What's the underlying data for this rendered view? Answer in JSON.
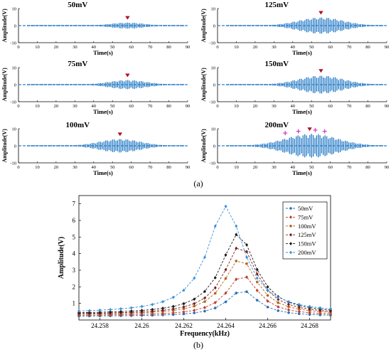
{
  "caption_a": "(a)",
  "caption_b": "(b)",
  "colors": {
    "signal": "#1f77c4",
    "dashed": "#2f7fc8",
    "peak_marker": "#b0101a",
    "plus_marker": "#d040c0"
  },
  "chart_data": [
    {
      "type": "line",
      "title": "50mV",
      "xlabel": "Time(s)",
      "ylabel": "Amplitude(V)",
      "xlim": [
        0,
        90
      ],
      "ylim": [
        -10,
        10
      ],
      "xticks": [
        "0",
        "10",
        "20",
        "30",
        "40",
        "50",
        "60",
        "70",
        "80",
        "90"
      ],
      "yticks": [
        "10",
        "0",
        "-10"
      ],
      "burst": {
        "center": 58,
        "amplitude": 1.8,
        "spread": 9
      },
      "peak_marker_time": 58,
      "plus_marker_times": []
    },
    {
      "type": "line",
      "title": "125mV",
      "xlabel": "Time(s)",
      "ylabel": "Amplitude(V)",
      "xlim": [
        0,
        90
      ],
      "ylim": [
        -10,
        10
      ],
      "xticks": [
        "0",
        "10",
        "20",
        "30",
        "40",
        "50",
        "60",
        "70",
        "80",
        "90"
      ],
      "yticks": [
        "10",
        "0",
        "-10"
      ],
      "burst": {
        "center": 55,
        "amplitude": 4.8,
        "spread": 12
      },
      "peak_marker_time": 55,
      "plus_marker_times": []
    },
    {
      "type": "line",
      "title": "75mV",
      "xlabel": "Time(s)",
      "ylabel": "Amplitude(V)",
      "xlim": [
        0,
        90
      ],
      "ylim": [
        -10,
        10
      ],
      "xticks": [
        "0",
        "10",
        "20",
        "30",
        "40",
        "50",
        "60",
        "70",
        "80",
        "90"
      ],
      "yticks": [
        "10",
        "0",
        "-10"
      ],
      "burst": {
        "center": 58,
        "amplitude": 2.7,
        "spread": 10
      },
      "peak_marker_time": 58,
      "plus_marker_times": []
    },
    {
      "type": "line",
      "title": "150mV",
      "xlabel": "Time(s)",
      "ylabel": "Amplitude(V)",
      "xlim": [
        0,
        90
      ],
      "ylim": [
        -10,
        10
      ],
      "xticks": [
        "0",
        "10",
        "20",
        "30",
        "40",
        "50",
        "60",
        "70",
        "80",
        "90"
      ],
      "yticks": [
        "10",
        "0",
        "-10"
      ],
      "burst": {
        "center": 55,
        "amplitude": 5.3,
        "spread": 12
      },
      "peak_marker_time": 55,
      "plus_marker_times": []
    },
    {
      "type": "line",
      "title": "100mV",
      "xlabel": "Time(s)",
      "ylabel": "Amplitude(V)",
      "xlim": [
        0,
        90
      ],
      "ylim": [
        -10,
        10
      ],
      "xticks": [
        "0",
        "10",
        "20",
        "30",
        "40",
        "50",
        "60",
        "70",
        "80",
        "90"
      ],
      "yticks": [
        "10",
        "0",
        "-10"
      ],
      "burst": {
        "center": 54,
        "amplitude": 4.0,
        "spread": 11
      },
      "peak_marker_time": 54,
      "plus_marker_times": []
    },
    {
      "type": "line",
      "title": "200mV",
      "xlabel": "Time(s)",
      "ylabel": "Amplitude(V)",
      "xlim": [
        0,
        90
      ],
      "ylim": [
        -10,
        10
      ],
      "xticks": [
        "0",
        "10",
        "20",
        "30",
        "40",
        "50",
        "60",
        "70",
        "80",
        "90"
      ],
      "yticks": [
        "10",
        "0",
        "-10"
      ],
      "burst": {
        "center": 50,
        "amplitude": 7.0,
        "spread": 14
      },
      "peak_marker_time": 49,
      "plus_marker_times": [
        36,
        43,
        52,
        57
      ]
    },
    {
      "type": "line",
      "xlabel": "Frequency(kHz)",
      "ylabel": "Amplitude(V)",
      "xlim": [
        24.257,
        24.269
      ],
      "ylim": [
        0,
        7.5
      ],
      "xticks": [
        24.258,
        24.26,
        24.262,
        24.264,
        24.266,
        24.268
      ],
      "xtick_labels": [
        "24.258",
        "24.26",
        "24.262",
        "24.264",
        "24.266",
        "24.268"
      ],
      "yticks": [
        1,
        2,
        3,
        4,
        5,
        6,
        7
      ],
      "ytick_labels": [
        "1",
        "2",
        "3",
        "4",
        "5",
        "6",
        "7"
      ],
      "x": [
        24.257,
        24.2575,
        24.258,
        24.2585,
        24.259,
        24.2595,
        24.26,
        24.2605,
        24.261,
        24.2615,
        24.262,
        24.2625,
        24.263,
        24.2635,
        24.264,
        24.2645,
        24.265,
        24.2655,
        24.266,
        24.2665,
        24.267,
        24.2675,
        24.268,
        24.2685,
        24.269
      ],
      "series": [
        {
          "name": "50mV",
          "color": "#2e6fb5",
          "marker": "circle",
          "peak": 1.78,
          "center": 24.2648,
          "width": 0.0009,
          "base": 0.22
        },
        {
          "name": "75mV",
          "color": "#c0392b",
          "marker": "diamond",
          "peak": 2.7,
          "center": 24.2648,
          "width": 0.0009,
          "base": 0.26
        },
        {
          "name": "100mV",
          "color": "#b5651d",
          "marker": "circle",
          "peak": 3.7,
          "center": 24.2647,
          "width": 0.00095,
          "base": 0.3
        },
        {
          "name": "125mV",
          "color": "#7a1c1c",
          "marker": "diamond",
          "peak": 4.5,
          "center": 24.2647,
          "width": 0.00095,
          "base": 0.33
        },
        {
          "name": "150mV",
          "color": "#1a1a1a",
          "marker": "diamond",
          "peak": 5.2,
          "center": 24.2646,
          "width": 0.001,
          "base": 0.36
        },
        {
          "name": "200mV",
          "color": "#3a8fd8",
          "marker": "diamond",
          "peak": 6.85,
          "center": 24.264,
          "width": 0.00105,
          "base": 0.4
        }
      ],
      "legend_position": "top-right"
    }
  ]
}
